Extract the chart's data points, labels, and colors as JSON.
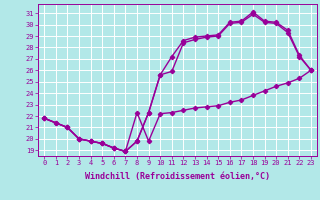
{
  "xlabel": "Windchill (Refroidissement éolien,°C)",
  "background_color": "#b2e8e8",
  "line_color": "#990099",
  "x_ticks": [
    0,
    1,
    2,
    3,
    4,
    5,
    6,
    7,
    8,
    9,
    10,
    11,
    12,
    13,
    14,
    15,
    16,
    17,
    18,
    19,
    20,
    21,
    22,
    23
  ],
  "y_ticks": [
    19,
    20,
    21,
    22,
    23,
    24,
    25,
    26,
    27,
    28,
    29,
    30,
    31
  ],
  "ylim": [
    18.5,
    31.8
  ],
  "xlim": [
    -0.5,
    23.5
  ],
  "line1_x": [
    0,
    1,
    2,
    3,
    4,
    5,
    6,
    7,
    8,
    9,
    10,
    11,
    12,
    13,
    14,
    15,
    16,
    17,
    18,
    19,
    20,
    21,
    22,
    23
  ],
  "line1_y": [
    21.8,
    21.4,
    21.0,
    20.0,
    19.8,
    19.6,
    19.2,
    18.9,
    22.3,
    19.8,
    22.2,
    22.3,
    22.5,
    22.7,
    22.8,
    22.9,
    23.2,
    23.4,
    23.8,
    24.2,
    24.6,
    24.9,
    25.3,
    26.0
  ],
  "line2_x": [
    0,
    1,
    2,
    3,
    4,
    5,
    6,
    7,
    8,
    9,
    10,
    11,
    12,
    13,
    14,
    15,
    16,
    17,
    18,
    19,
    20,
    21,
    22,
    23
  ],
  "line2_y": [
    21.8,
    21.4,
    21.0,
    20.0,
    19.8,
    19.6,
    19.2,
    18.9,
    19.8,
    22.3,
    25.6,
    27.2,
    28.6,
    28.9,
    29.0,
    29.1,
    30.2,
    30.3,
    31.1,
    30.3,
    30.2,
    29.5,
    27.3,
    26.0
  ],
  "line3_x": [
    0,
    2,
    3,
    4,
    5,
    6,
    7,
    8,
    9,
    10,
    11,
    12,
    13,
    14,
    15,
    16,
    17,
    18,
    19,
    20,
    21,
    22,
    23
  ],
  "line3_y": [
    21.8,
    21.0,
    20.0,
    19.8,
    19.6,
    19.2,
    18.9,
    19.8,
    22.3,
    25.6,
    25.9,
    28.4,
    28.7,
    28.9,
    29.0,
    30.1,
    30.2,
    30.9,
    30.2,
    30.1,
    29.3,
    27.2,
    26.0
  ],
  "grid_color": "#ffffff",
  "marker": "D",
  "markersize": 2.2,
  "linewidth": 1.0
}
